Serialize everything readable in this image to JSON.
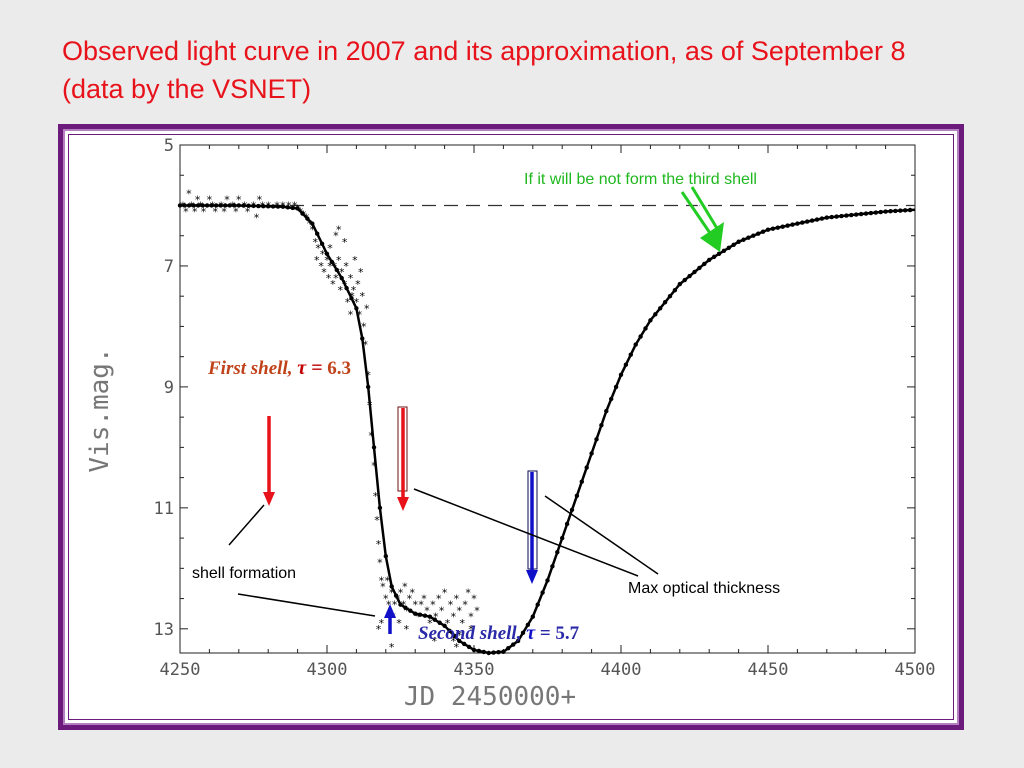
{
  "slide": {
    "title": "Observed light curve in 2007 and its approximation, as of September 8 (data by the VSNET)"
  },
  "colors": {
    "title": "#e8121b",
    "frame": "#6d1a7d",
    "red_arrow": "#e8121b",
    "blue_arrow": "#1010c8",
    "green_arrow": "#22cc22",
    "first_shell_text": "#c0421a",
    "second_shell_text": "#2a2aa8",
    "points": "#000000"
  },
  "chart_data": {
    "type": "scatter",
    "xlabel": "JD 2450000+",
    "ylabel": "Vis.mag.",
    "xlim": [
      4250,
      4500
    ],
    "ylim": [
      13.4,
      5
    ],
    "y_inverted": true,
    "grid": false,
    "xticks": [
      "4250",
      "4300",
      "4350",
      "4400",
      "4450",
      "4500"
    ],
    "yticks": [
      "5",
      "7",
      "9",
      "11",
      "13"
    ],
    "reference_line": {
      "y": 6.0,
      "style": "dashed"
    },
    "series": [
      {
        "kind": "observed",
        "points": [
          [
            4251,
            6.0
          ],
          [
            4252,
            6.1
          ],
          [
            4253,
            5.8
          ],
          [
            4254,
            6.0
          ],
          [
            4255,
            6.1
          ],
          [
            4256,
            5.9
          ],
          [
            4257,
            6.0
          ],
          [
            4258,
            6.1
          ],
          [
            4260,
            5.9
          ],
          [
            4261,
            6.0
          ],
          [
            4262,
            6.1
          ],
          [
            4264,
            6.0
          ],
          [
            4265,
            6.1
          ],
          [
            4266,
            5.9
          ],
          [
            4268,
            6.0
          ],
          [
            4269,
            6.1
          ],
          [
            4270,
            5.9
          ],
          [
            4272,
            6.0
          ],
          [
            4273,
            6.1
          ],
          [
            4275,
            6.0
          ],
          [
            4276,
            6.2
          ],
          [
            4277,
            5.9
          ],
          [
            4278,
            6.0
          ],
          [
            4280,
            6.0
          ],
          [
            4283,
            6.0
          ],
          [
            4285,
            6.0
          ],
          [
            4287,
            6.0
          ],
          [
            4289,
            6.0
          ],
          [
            4290,
            6.05
          ],
          [
            4291,
            6.1
          ],
          [
            4292,
            6.15
          ],
          [
            4293,
            6.2
          ],
          [
            4294,
            6.3
          ],
          [
            4295,
            6.4
          ],
          [
            4296,
            6.6
          ],
          [
            4296.5,
            6.9
          ],
          [
            4297,
            6.7
          ],
          [
            4298,
            7.0
          ],
          [
            4298.5,
            6.8
          ],
          [
            4299,
            7.1
          ],
          [
            4300,
            6.9
          ],
          [
            4300.5,
            7.2
          ],
          [
            4301,
            7.0
          ],
          [
            4302,
            7.3
          ],
          [
            4302.5,
            7.0
          ],
          [
            4303,
            7.2
          ],
          [
            4304,
            6.9
          ],
          [
            4304.5,
            7.4
          ],
          [
            4305,
            7.1
          ],
          [
            4306,
            7.3
          ],
          [
            4306.5,
            7.0
          ],
          [
            4307,
            7.6
          ],
          [
            4308,
            7.2
          ],
          [
            4308.5,
            7.5
          ],
          [
            4309,
            7.4
          ],
          [
            4310,
            7.6
          ],
          [
            4310.5,
            7.3
          ],
          [
            4311,
            7.8
          ],
          [
            4312,
            7.5
          ],
          [
            4312.5,
            8.0
          ],
          [
            4313,
            8.3
          ],
          [
            4314,
            8.8
          ],
          [
            4314.5,
            9.3
          ],
          [
            4315,
            9.8
          ],
          [
            4316,
            10.3
          ],
          [
            4316.5,
            10.8
          ],
          [
            4317,
            11.2
          ],
          [
            4317.5,
            11.6
          ],
          [
            4318,
            11.9
          ],
          [
            4318.5,
            12.2
          ],
          [
            4319,
            12.3
          ],
          [
            4320,
            12.5
          ],
          [
            4320.5,
            12.2
          ],
          [
            4321,
            12.6
          ],
          [
            4322,
            12.4
          ],
          [
            4322.5,
            12.8
          ],
          [
            4323,
            12.6
          ],
          [
            4324,
            12.5
          ],
          [
            4324.5,
            12.9
          ],
          [
            4325,
            12.4
          ],
          [
            4326,
            12.6
          ],
          [
            4326.5,
            12.3
          ],
          [
            4327,
            12.7
          ],
          [
            4328,
            12.5
          ],
          [
            4329,
            12.4
          ],
          [
            4330,
            12.6
          ],
          [
            4331,
            12.8
          ],
          [
            4332,
            12.6
          ],
          [
            4333,
            12.5
          ],
          [
            4334,
            12.7
          ],
          [
            4335,
            12.9
          ],
          [
            4336,
            12.6
          ],
          [
            4336.5,
            13.2
          ],
          [
            4337,
            12.8
          ],
          [
            4338,
            12.5
          ],
          [
            4339,
            12.7
          ],
          [
            4340,
            12.4
          ],
          [
            4341,
            12.9
          ],
          [
            4342,
            12.6
          ],
          [
            4343,
            12.8
          ],
          [
            4344,
            12.5
          ],
          [
            4345,
            12.7
          ],
          [
            4346,
            12.9
          ],
          [
            4347,
            12.6
          ],
          [
            4348,
            12.4
          ],
          [
            4349,
            12.8
          ],
          [
            4350,
            12.5
          ],
          [
            4351,
            12.7
          ],
          [
            4318.5,
            12.9
          ],
          [
            4317.5,
            13.0
          ],
          [
            4322,
            13.3
          ],
          [
            4327,
            13.0
          ],
          [
            4306,
            6.6
          ],
          [
            4304,
            6.4
          ],
          [
            4308,
            7.8
          ],
          [
            4309.5,
            6.9
          ],
          [
            4311.5,
            7.1
          ],
          [
            4313.5,
            7.7
          ],
          [
            4303,
            6.5
          ],
          [
            4301,
            6.7
          ],
          [
            4343,
            13.2
          ],
          [
            4345,
            13.1
          ],
          [
            4344,
            13.3
          ],
          [
            4349,
            13.0
          ]
        ]
      },
      {
        "kind": "approximation",
        "points": [
          [
            4250,
            6.0
          ],
          [
            4270,
            6.0
          ],
          [
            4285,
            6.02
          ],
          [
            4290,
            6.05
          ],
          [
            4295,
            6.3
          ],
          [
            4300,
            6.8
          ],
          [
            4305,
            7.2
          ],
          [
            4310,
            7.7
          ],
          [
            4312,
            8.2
          ],
          [
            4314,
            9.0
          ],
          [
            4316,
            10.0
          ],
          [
            4318,
            11.0
          ],
          [
            4320,
            11.8
          ],
          [
            4322,
            12.3
          ],
          [
            4325,
            12.6
          ],
          [
            4330,
            12.75
          ],
          [
            4335,
            12.8
          ],
          [
            4340,
            12.95
          ],
          [
            4345,
            13.2
          ],
          [
            4350,
            13.35
          ],
          [
            4355,
            13.4
          ],
          [
            4360,
            13.38
          ],
          [
            4365,
            13.2
          ],
          [
            4370,
            12.8
          ],
          [
            4375,
            12.2
          ],
          [
            4380,
            11.5
          ],
          [
            4385,
            10.8
          ],
          [
            4390,
            10.1
          ],
          [
            4395,
            9.4
          ],
          [
            4400,
            8.8
          ],
          [
            4405,
            8.3
          ],
          [
            4410,
            7.9
          ],
          [
            4420,
            7.3
          ],
          [
            4430,
            6.9
          ],
          [
            4440,
            6.6
          ],
          [
            4450,
            6.4
          ],
          [
            4460,
            6.3
          ],
          [
            4470,
            6.2
          ],
          [
            4480,
            6.15
          ],
          [
            4490,
            6.1
          ],
          [
            4500,
            6.07
          ]
        ]
      }
    ],
    "annotations": {
      "first_shell_label": "First shell,",
      "first_shell_tau": "τ =",
      "first_shell_value": "6.3",
      "second_shell_label": "Second shell,",
      "second_shell_tau": "τ",
      "second_shell_value": "= 5.7",
      "shell_formation": "shell formation",
      "max_optical_thickness": "Max optical thickness",
      "third_shell_note": "If it will be not form the third shell"
    }
  }
}
